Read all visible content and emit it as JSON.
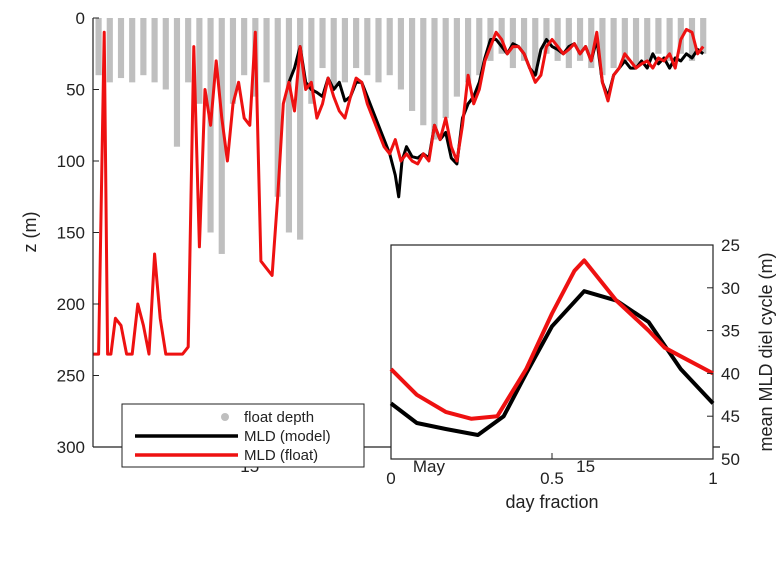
{
  "chart_data": [
    {
      "type": "line",
      "ylabel": "z (m)",
      "xlabel": "",
      "y_reversed": true,
      "ylim": [
        300,
        0
      ],
      "y_ticks": [
        "0",
        "50",
        "100",
        "150",
        "200",
        "250",
        "300"
      ],
      "x_ticks": [
        {
          "label": "15",
          "day": 15
        },
        {
          "label": "May",
          "day": 31
        },
        {
          "label": "15",
          "day": 45
        }
      ],
      "xlim_days": [
        1,
        57
      ],
      "legend": {
        "placement": "bottom-left",
        "entries": [
          {
            "label": "float depth",
            "color": "#bfbfbf",
            "marker": "dot"
          },
          {
            "label": "MLD (model)",
            "color": "#000000",
            "marker": "line"
          },
          {
            "label": "MLD (float)",
            "color": "#ee1111",
            "marker": "line"
          }
        ]
      },
      "series": [
        {
          "name": "MLD (model)",
          "color": "#000000",
          "x_days": [
            18.5,
            19,
            19.5,
            20,
            20.5,
            21,
            21.5,
            22,
            22.5,
            23,
            23.5,
            24,
            24.5,
            25,
            25.5,
            26,
            26.5,
            27,
            27.5,
            28,
            28.3,
            28.6,
            29,
            29.5,
            30,
            30.5,
            31,
            31.5,
            32,
            32.5,
            33,
            33.5,
            34,
            34.5,
            35,
            35.5,
            36,
            36.5,
            37,
            37.5,
            38,
            38.5,
            39,
            39.5,
            40,
            40.5,
            41,
            41.5,
            42,
            42.5,
            43,
            43.5,
            44,
            44.5,
            45,
            45.5,
            46,
            46.5,
            47,
            47.5,
            48,
            48.5,
            49,
            49.5,
            50,
            50.5,
            51,
            51.5,
            52,
            52.5,
            53,
            53.5,
            54,
            54.5,
            55,
            55.5
          ],
          "z": [
            45,
            35,
            20,
            45,
            50,
            52,
            55,
            42,
            50,
            45,
            58,
            55,
            45,
            45,
            55,
            65,
            75,
            85,
            95,
            110,
            125,
            100,
            90,
            97,
            98,
            95,
            98,
            75,
            85,
            80,
            98,
            102,
            70,
            60,
            55,
            45,
            28,
            15,
            15,
            20,
            25,
            18,
            20,
            25,
            35,
            40,
            22,
            15,
            20,
            22,
            25,
            20,
            18,
            25,
            20,
            30,
            15,
            45,
            55,
            40,
            35,
            30,
            35,
            35,
            30,
            35,
            25,
            32,
            28,
            35,
            28,
            30,
            25,
            28,
            22,
            25
          ]
        },
        {
          "name": "MLD (float)",
          "color": "#ee1111",
          "x_days": [
            1,
            1.5,
            2,
            2.3,
            2.6,
            3,
            3.5,
            4,
            4.5,
            5,
            5.5,
            6,
            6.5,
            7,
            7.5,
            8,
            8.5,
            9,
            9.5,
            10,
            10.5,
            11,
            11.5,
            12,
            12.5,
            13,
            13.5,
            14,
            14.5,
            15,
            15.5,
            16,
            16.5,
            17,
            17.5,
            18,
            18.5,
            19,
            19.5,
            20,
            20.5,
            21,
            21.5,
            22,
            22.5,
            23,
            23.5,
            24,
            24.5,
            25,
            25.5,
            26,
            26.5,
            27,
            27.5,
            28,
            28.5,
            29,
            29.5,
            30,
            30.5,
            31,
            31.5,
            32,
            32.5,
            33,
            33.5,
            34,
            34.5,
            35,
            35.5,
            36,
            36.5,
            37,
            37.5,
            38,
            38.5,
            39,
            39.5,
            40,
            40.5,
            41,
            41.5,
            42,
            42.5,
            43,
            43.5,
            44,
            44.5,
            45,
            45.5,
            46,
            46.5,
            47,
            47.5,
            48,
            48.5,
            49,
            49.5,
            50,
            50.5,
            51,
            51.5,
            52,
            52.5,
            53,
            53.5,
            54,
            54.5,
            55,
            55.5
          ],
          "z": [
            235,
            235,
            10,
            235,
            235,
            210,
            215,
            235,
            235,
            200,
            215,
            235,
            165,
            210,
            235,
            235,
            235,
            235,
            230,
            20,
            160,
            50,
            75,
            30,
            70,
            100,
            60,
            45,
            70,
            75,
            10,
            170,
            175,
            180,
            125,
            60,
            45,
            65,
            20,
            50,
            45,
            70,
            60,
            42,
            55,
            65,
            70,
            55,
            42,
            45,
            60,
            70,
            80,
            90,
            95,
            85,
            100,
            95,
            100,
            102,
            95,
            100,
            75,
            85,
            70,
            90,
            100,
            75,
            40,
            60,
            50,
            30,
            20,
            10,
            15,
            25,
            20,
            20,
            25,
            35,
            45,
            40,
            20,
            15,
            20,
            25,
            22,
            18,
            25,
            20,
            30,
            10,
            45,
            58,
            40,
            35,
            25,
            30,
            35,
            32,
            30,
            35,
            28,
            30,
            25,
            35,
            15,
            8,
            10,
            25,
            20
          ]
        },
        {
          "name": "float depth",
          "color": "#bfbfbf",
          "profiles": [
            {
              "x_day": 1.5,
              "max_z": 40
            },
            {
              "x_day": 2.5,
              "max_z": 45
            },
            {
              "x_day": 3.5,
              "max_z": 42
            },
            {
              "x_day": 4.5,
              "max_z": 45
            },
            {
              "x_day": 5.5,
              "max_z": 40
            },
            {
              "x_day": 6.5,
              "max_z": 45
            },
            {
              "x_day": 7.5,
              "max_z": 50
            },
            {
              "x_day": 8.5,
              "max_z": 90
            },
            {
              "x_day": 9.5,
              "max_z": 45
            },
            {
              "x_day": 10.5,
              "max_z": 60
            },
            {
              "x_day": 11.5,
              "max_z": 150
            },
            {
              "x_day": 12.5,
              "max_z": 165
            },
            {
              "x_day": 13.5,
              "max_z": 60
            },
            {
              "x_day": 14.5,
              "max_z": 40
            },
            {
              "x_day": 15.5,
              "max_z": 55
            },
            {
              "x_day": 16.5,
              "max_z": 45
            },
            {
              "x_day": 17.5,
              "max_z": 125
            },
            {
              "x_day": 18.5,
              "max_z": 150
            },
            {
              "x_day": 19.5,
              "max_z": 155
            },
            {
              "x_day": 20.5,
              "max_z": 60
            },
            {
              "x_day": 21.5,
              "max_z": 35
            },
            {
              "x_day": 22.5,
              "max_z": 50
            },
            {
              "x_day": 23.5,
              "max_z": 45
            },
            {
              "x_day": 24.5,
              "max_z": 35
            },
            {
              "x_day": 25.5,
              "max_z": 40
            },
            {
              "x_day": 26.5,
              "max_z": 45
            },
            {
              "x_day": 27.5,
              "max_z": 40
            },
            {
              "x_day": 28.5,
              "max_z": 50
            },
            {
              "x_day": 29.5,
              "max_z": 65
            },
            {
              "x_day": 30.5,
              "max_z": 75
            },
            {
              "x_day": 31.5,
              "max_z": 85
            },
            {
              "x_day": 32.5,
              "max_z": 70
            },
            {
              "x_day": 33.5,
              "max_z": 55
            },
            {
              "x_day": 34.5,
              "max_z": 45
            },
            {
              "x_day": 35.5,
              "max_z": 40
            },
            {
              "x_day": 36.5,
              "max_z": 30
            },
            {
              "x_day": 37.5,
              "max_z": 25
            },
            {
              "x_day": 38.5,
              "max_z": 35
            },
            {
              "x_day": 39.5,
              "max_z": 30
            },
            {
              "x_day": 40.5,
              "max_z": 40
            },
            {
              "x_day": 41.5,
              "max_z": 25
            },
            {
              "x_day": 42.5,
              "max_z": 30
            },
            {
              "x_day": 43.5,
              "max_z": 35
            },
            {
              "x_day": 44.5,
              "max_z": 30
            },
            {
              "x_day": 45.5,
              "max_z": 35
            },
            {
              "x_day": 46.5,
              "max_z": 40
            },
            {
              "x_day": 47.5,
              "max_z": 35
            },
            {
              "x_day": 48.5,
              "max_z": 30
            },
            {
              "x_day": 49.5,
              "max_z": 35
            },
            {
              "x_day": 50.5,
              "max_z": 30
            },
            {
              "x_day": 51.5,
              "max_z": 25
            },
            {
              "x_day": 52.5,
              "max_z": 30
            },
            {
              "x_day": 53.5,
              "max_z": 25
            },
            {
              "x_day": 54.5,
              "max_z": 30
            },
            {
              "x_day": 55.5,
              "max_z": 25
            }
          ]
        }
      ]
    },
    {
      "type": "line",
      "xlabel": "day fraction",
      "ylabel": "mean MLD diel cycle (m)",
      "xlim": [
        0,
        1
      ],
      "ylim": [
        50,
        25
      ],
      "y_reversed": true,
      "y_axis_side": "right",
      "x_ticks": [
        "0",
        "0.5",
        "1"
      ],
      "y_ticks": [
        "25",
        "30",
        "35",
        "40",
        "45",
        "50"
      ],
      "series": [
        {
          "name": "MLD (model)",
          "color": "#000000",
          "x": [
            0,
            0.08,
            0.17,
            0.27,
            0.35,
            0.42,
            0.5,
            0.6,
            0.7,
            0.8,
            0.9,
            1.0
          ],
          "y": [
            43.5,
            45.8,
            46.5,
            47.2,
            45,
            40,
            34.5,
            30.4,
            31.5,
            34,
            39.5,
            43.5
          ]
        },
        {
          "name": "MLD (float)",
          "color": "#ee1111",
          "x": [
            0,
            0.08,
            0.17,
            0.25,
            0.33,
            0.42,
            0.5,
            0.57,
            0.6,
            0.7,
            0.8,
            0.85,
            0.9,
            1.0
          ],
          "y": [
            39.5,
            42.5,
            44.5,
            45.3,
            45,
            39.5,
            33,
            28,
            26.8,
            31.5,
            35,
            37,
            38,
            40
          ]
        }
      ]
    }
  ]
}
